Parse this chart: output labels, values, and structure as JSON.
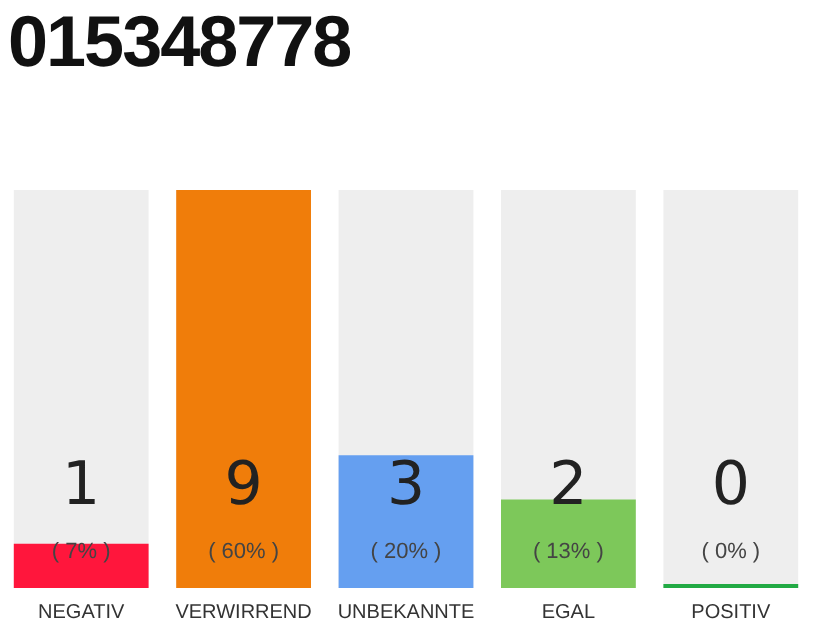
{
  "chart_data": {
    "type": "bar",
    "title": "015348778",
    "categories": [
      "NEGATIV",
      "VERWIRREND",
      "UNBEKANNTE",
      "EGAL",
      "POSITIV"
    ],
    "values": [
      1,
      9,
      3,
      2,
      0
    ],
    "colors": [
      "#ff163c",
      "#f07d0a",
      "#659ff0",
      "#7dc85a",
      "#22aa44"
    ],
    "data_labels": true,
    "annotations": [
      "( 7% )",
      "( 60% )",
      "( 20% )",
      "( 13% )",
      "( 0% )"
    ],
    "grid": false,
    "legend": false
  }
}
